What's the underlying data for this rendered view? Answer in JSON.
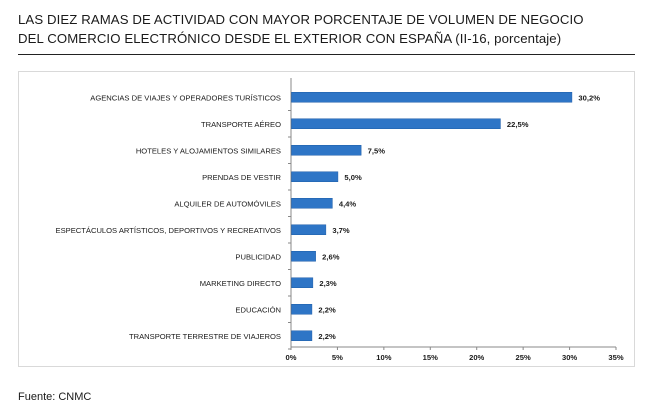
{
  "title": {
    "line1": "LAS DIEZ RAMAS DE ACTIVIDAD CON MAYOR PORCENTAJE DE VOLUMEN DE NEGOCIO",
    "line2": "DEL COMERCIO ELECTRÓNICO DESDE EL EXTERIOR CON ESPAÑA (II-16, porcentaje)"
  },
  "source": "Fuente: CNMC",
  "colors": {
    "bar": "#2e75c6",
    "bar_border": "#1f5ea8",
    "text": "#1a1a1a"
  },
  "chart_data": {
    "type": "bar",
    "orientation": "horizontal",
    "categories": [
      "AGENCIAS DE VIAJES Y OPERADORES TURÍSTICOS",
      "TRANSPORTE AÉREO",
      "HOTELES  Y ALOJAMIENTOS SIMILARES",
      "PRENDAS DE VESTIR",
      "ALQUILER DE AUTOMÓVILES",
      "ESPECTÁCULOS ARTÍSTICOS, DEPORTIVOS Y RECREATIVOS",
      "PUBLICIDAD",
      "MARKETING DIRECTO",
      "EDUCACIÓN",
      "TRANSPORTE TERRESTRE DE VIAJEROS"
    ],
    "values": [
      30.2,
      22.5,
      7.5,
      5.0,
      4.4,
      3.7,
      2.6,
      2.3,
      2.2,
      2.2
    ],
    "data_labels": [
      "30,2%",
      "22,5%",
      "7,5%",
      "5,0%",
      "4,4%",
      "3,7%",
      "2,6%",
      "2,3%",
      "2,2%",
      "2,2%"
    ],
    "xlim": [
      0,
      35
    ],
    "xticks": [
      0,
      5,
      10,
      15,
      20,
      25,
      30,
      35
    ],
    "xtick_labels": [
      "0%",
      "5%",
      "10%",
      "15%",
      "20%",
      "25%",
      "30%",
      "35%"
    ],
    "grid": false,
    "legend": "none"
  }
}
